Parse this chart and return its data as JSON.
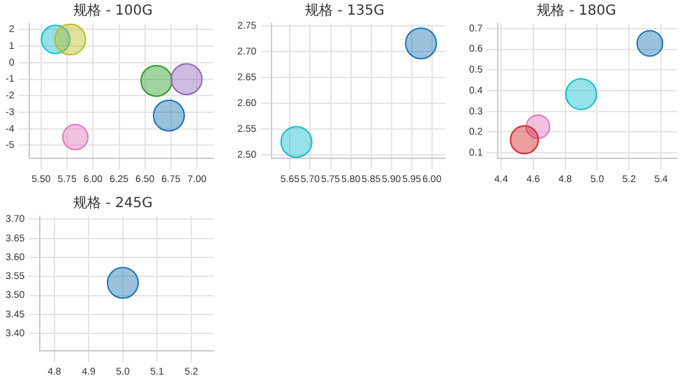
{
  "chart_data": [
    {
      "type": "bubble",
      "title": "规格 - 100G",
      "x": [
        5.64,
        5.78,
        6.61,
        6.9,
        6.73,
        5.83
      ],
      "values": [
        1.4,
        1.4,
        -1.1,
        -1.0,
        -3.2,
        -4.5
      ],
      "sizes": [
        0.85,
        1,
        1,
        1,
        1,
        0.67
      ],
      "colors": [
        "#17becf",
        "#bcbd22",
        "#2ca02c",
        "#9467bd",
        "#1f77b4",
        "#e377c2"
      ],
      "xlim": [
        5.39,
        7.16
      ],
      "ylim": [
        -5.79,
        2.35
      ],
      "xticks": [
        {
          "value": 5.5,
          "label": "5.50"
        },
        {
          "value": 5.75,
          "label": "5.75"
        },
        {
          "value": 6,
          "label": "6.00"
        },
        {
          "value": 6.25,
          "label": "6.25"
        },
        {
          "value": 6.5,
          "label": "6.50"
        },
        {
          "value": 6.75,
          "label": "6.75"
        },
        {
          "value": 7,
          "label": "7.00"
        }
      ],
      "yticks": [
        -5,
        -4,
        -3,
        -2,
        -1,
        0,
        1,
        2
      ],
      "grid": true,
      "legend": false
    },
    {
      "type": "bubble",
      "title": "规格 - 135G",
      "x": [
        5.666,
        5.973
      ],
      "values": [
        2.525,
        2.716
      ],
      "sizes": [
        1,
        1
      ],
      "colors": [
        "#17becf",
        "#1f77b4"
      ],
      "xlim": [
        5.605,
        6.033
      ],
      "ylim": [
        2.493,
        2.754
      ],
      "xticks": [
        {
          "value": 5.65,
          "label": "5.65"
        },
        {
          "value": 5.7,
          "label": "5.70"
        },
        {
          "value": 5.75,
          "label": "5.75"
        },
        {
          "value": 5.8,
          "label": "5.80"
        },
        {
          "value": 5.85,
          "label": "5.85"
        },
        {
          "value": 5.9,
          "label": "5.90"
        },
        {
          "value": 5.95,
          "label": "5.95"
        },
        {
          "value": 6,
          "label": "6.00"
        }
      ],
      "yticks": [
        {
          "value": 2.5,
          "label": "2.50"
        },
        {
          "value": 2.55,
          "label": "2.55"
        },
        {
          "value": 2.6,
          "label": "2.60"
        },
        {
          "value": 2.65,
          "label": "2.65"
        },
        {
          "value": 2.7,
          "label": "2.70"
        },
        {
          "value": 2.75,
          "label": "2.75"
        }
      ],
      "grid": true,
      "legend": false
    },
    {
      "type": "bubble",
      "title": "规格 - 180G",
      "x": [
        5.33,
        4.9,
        4.63,
        4.545
      ],
      "values": [
        0.628,
        0.383,
        0.226,
        0.163
      ],
      "sizes": [
        0.69,
        1,
        0.58,
        0.82
      ],
      "colors": [
        "#1f77b4",
        "#17becf",
        "#e377c2",
        "#d62728"
      ],
      "xlim": [
        4.38,
        5.5
      ],
      "ylim": [
        0.073,
        0.723
      ],
      "xticks": [
        4.4,
        4.6,
        4.8,
        {
          "value": 5,
          "label": "5.0"
        },
        5.2,
        5.4
      ],
      "yticks": [
        0.1,
        0.2,
        0.3,
        0.4,
        0.5,
        0.6,
        0.7
      ],
      "grid": true,
      "legend": false
    },
    {
      "type": "bubble",
      "title": "规格 - 245G",
      "x": [
        5.0
      ],
      "values": [
        3.533
      ],
      "sizes": [
        1
      ],
      "colors": [
        "#1f77b4"
      ],
      "xlim": [
        4.758,
        5.265
      ],
      "ylim": [
        3.354,
        3.708
      ],
      "xticks": [
        4.8,
        4.9,
        {
          "value": 5,
          "label": "5.0"
        },
        5.1,
        5.2
      ],
      "yticks": [
        {
          "value": 3.4,
          "label": "3.40"
        },
        {
          "value": 3.45,
          "label": "3.45"
        },
        {
          "value": 3.5,
          "label": "3.50"
        },
        {
          "value": 3.55,
          "label": "3.55"
        },
        {
          "value": 3.6,
          "label": "3.60"
        },
        {
          "value": 3.65,
          "label": "3.65"
        },
        {
          "value": 3.7,
          "label": "3.70"
        }
      ],
      "grid": true,
      "legend": false
    }
  ]
}
